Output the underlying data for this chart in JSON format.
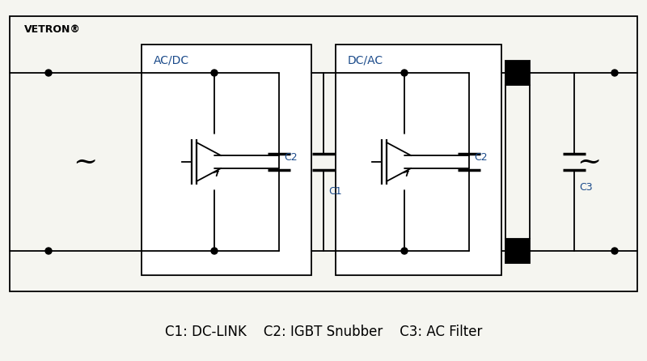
{
  "bg": "#f5f5f0",
  "white": "#ffffff",
  "black": "#000000",
  "gray_line": "#555555",
  "title": "VETRON®",
  "caption": "C1: DC-LINK    C2: IGBT Snubber    C3: AC Filter",
  "label_acdc": "AC/DC",
  "label_dcac": "DC/AC",
  "label_c1": "C1",
  "label_c2": "C2",
  "label_c3": "C3"
}
